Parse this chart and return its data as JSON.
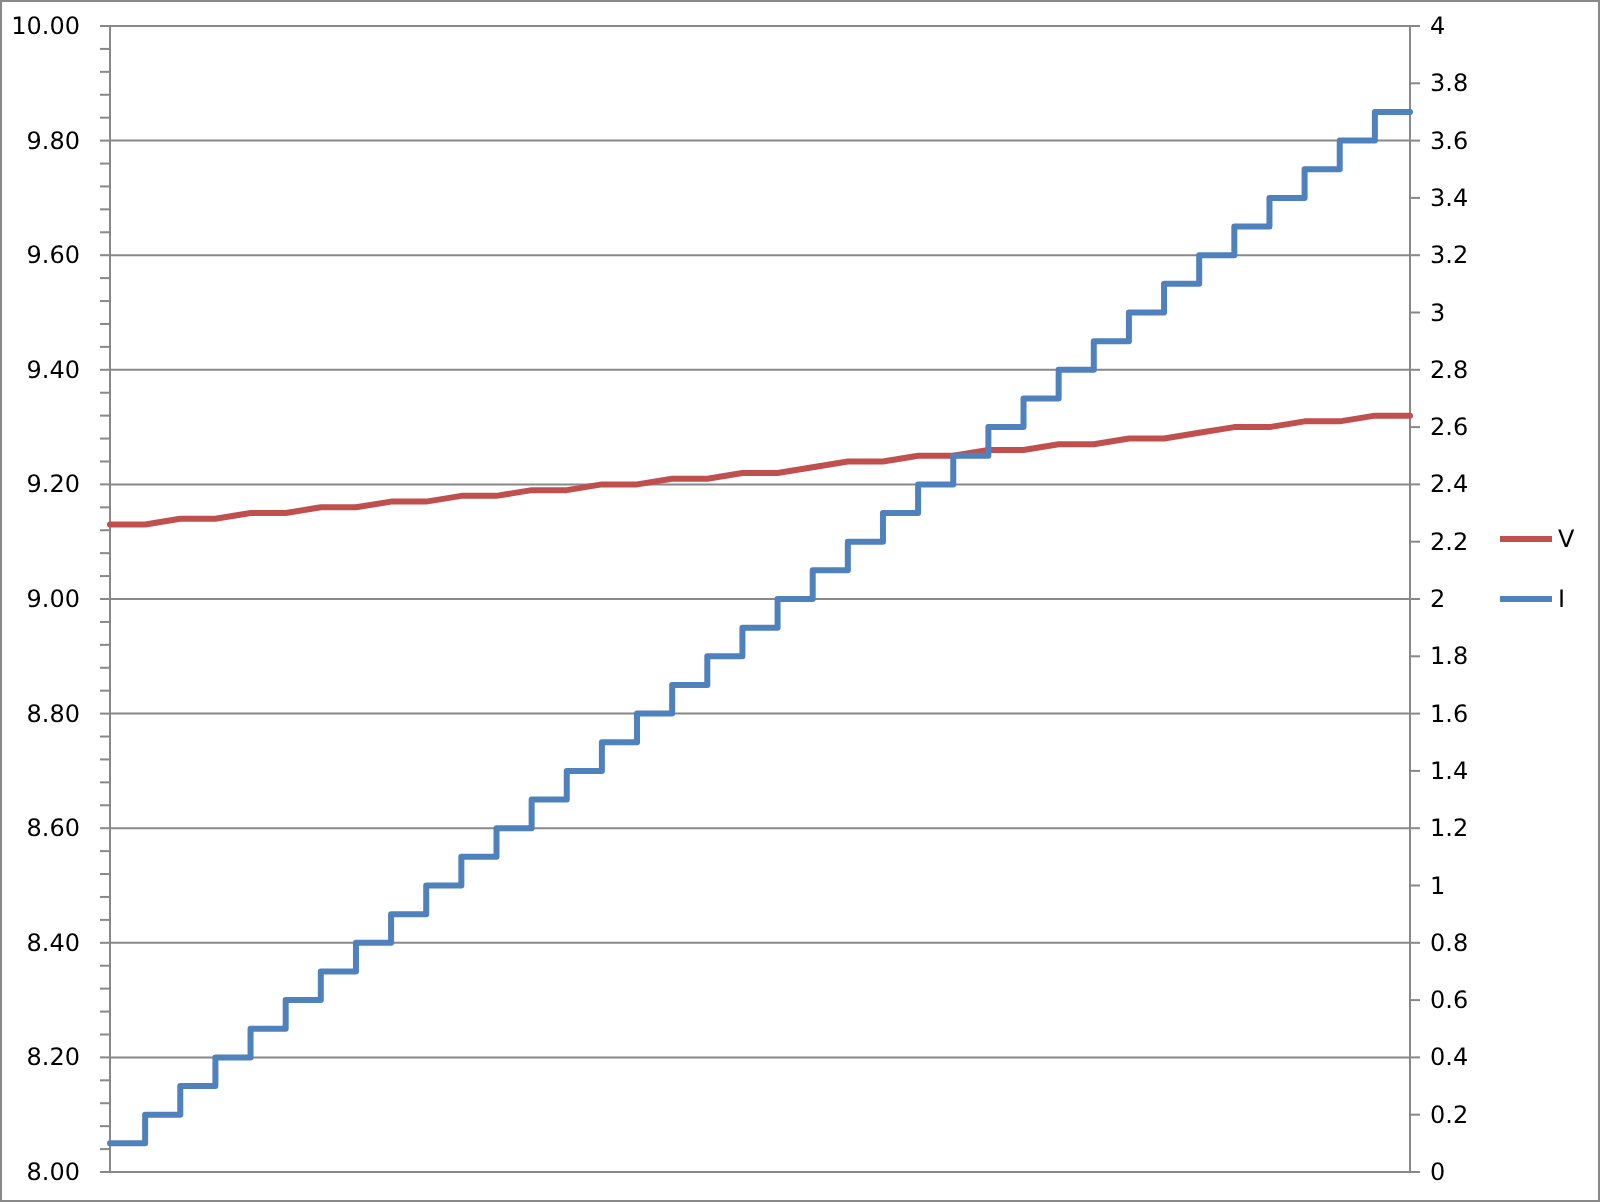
{
  "chart_data": {
    "type": "line",
    "categories": [
      null,
      null,
      null,
      null,
      null,
      null,
      null,
      null,
      null,
      null,
      null,
      null,
      null,
      null,
      null,
      null,
      null,
      null,
      null,
      null,
      null,
      null,
      null,
      null,
      null,
      null,
      null,
      null,
      null,
      null,
      null,
      null,
      null,
      null,
      null,
      null,
      null,
      null
    ],
    "series": [
      {
        "name": "V",
        "color": "#c0504d",
        "values": [
          9.13,
          9.13,
          9.14,
          9.14,
          9.15,
          9.15,
          9.16,
          9.16,
          9.17,
          9.17,
          9.18,
          9.18,
          9.19,
          9.19,
          9.2,
          9.2,
          9.21,
          9.21,
          9.22,
          9.22,
          9.23,
          9.24,
          9.24,
          9.25,
          9.25,
          9.26,
          9.26,
          9.27,
          9.27,
          9.28,
          9.28,
          9.29,
          9.3,
          9.3,
          9.31,
          9.31,
          9.32,
          9.32
        ]
      },
      {
        "name": "I",
        "color": "#4f81bd",
        "type": "step",
        "axis": "y2",
        "values": [
          0.1,
          0.2,
          0.3,
          0.4,
          0.5,
          0.6,
          0.7,
          0.8,
          0.9,
          1.0,
          1.1,
          1.2,
          1.3,
          1.4,
          1.5,
          1.6,
          1.7,
          1.8,
          1.9,
          2.0,
          2.1,
          2.2,
          2.3,
          2.4,
          2.5,
          2.6,
          2.7,
          2.8,
          2.9,
          3.0,
          3.1,
          3.2,
          3.3,
          3.4,
          3.5,
          3.6,
          3.7,
          3.7
        ]
      }
    ],
    "ylim": [
      8,
      10
    ],
    "yticks": [
      {
        "value": 8,
        "label": "8.00"
      },
      {
        "value": 8.04,
        "label": null
      },
      {
        "value": 8.08,
        "label": null
      },
      {
        "value": 8.12,
        "label": null
      },
      {
        "value": 8.16,
        "label": null
      },
      {
        "value": 8.2,
        "label": "8.20"
      },
      {
        "value": 8.24,
        "label": null
      },
      {
        "value": 8.28,
        "label": null
      },
      {
        "value": 8.32,
        "label": null
      },
      {
        "value": 8.36,
        "label": null
      },
      {
        "value": 8.4,
        "label": "8.40"
      },
      {
        "value": 8.44,
        "label": null
      },
      {
        "value": 8.48,
        "label": null
      },
      {
        "value": 8.52,
        "label": null
      },
      {
        "value": 8.56,
        "label": null
      },
      {
        "value": 8.6,
        "label": "8.60"
      },
      {
        "value": 8.64,
        "label": null
      },
      {
        "value": 8.68,
        "label": null
      },
      {
        "value": 8.72,
        "label": null
      },
      {
        "value": 8.76,
        "label": null
      },
      {
        "value": 8.8,
        "label": "8.80"
      },
      {
        "value": 8.84,
        "label": null
      },
      {
        "value": 8.88,
        "label": null
      },
      {
        "value": 8.92,
        "label": null
      },
      {
        "value": 8.96,
        "label": null
      },
      {
        "value": 9,
        "label": "9.00"
      },
      {
        "value": 9.04,
        "label": null
      },
      {
        "value": 9.08,
        "label": null
      },
      {
        "value": 9.12,
        "label": null
      },
      {
        "value": 9.16,
        "label": null
      },
      {
        "value": 9.2,
        "label": "9.20"
      },
      {
        "value": 9.24,
        "label": null
      },
      {
        "value": 9.28,
        "label": null
      },
      {
        "value": 9.32,
        "label": null
      },
      {
        "value": 9.36,
        "label": null
      },
      {
        "value": 9.4,
        "label": "9.40"
      },
      {
        "value": 9.44,
        "label": null
      },
      {
        "value": 9.48,
        "label": null
      },
      {
        "value": 9.52,
        "label": null
      },
      {
        "value": 9.56,
        "label": null
      },
      {
        "value": 9.6,
        "label": "9.60"
      },
      {
        "value": 9.64,
        "label": null
      },
      {
        "value": 9.68,
        "label": null
      },
      {
        "value": 9.72,
        "label": null
      },
      {
        "value": 9.76,
        "label": null
      },
      {
        "value": 9.8,
        "label": "9.80"
      },
      {
        "value": 9.84,
        "label": null
      },
      {
        "value": 9.88,
        "label": null
      },
      {
        "value": 9.92,
        "label": null
      },
      {
        "value": 9.96,
        "label": null
      },
      {
        "value": 10,
        "label": "10.00"
      }
    ],
    "y2lim": [
      0,
      4
    ],
    "y2ticks": [
      0,
      0.2,
      0.4,
      0.6,
      0.8,
      1,
      1.2,
      1.4,
      1.6,
      1.8,
      2,
      2.2,
      2.4,
      2.6,
      2.8,
      3,
      3.2,
      3.4,
      3.6,
      3.8,
      4
    ],
    "grid": "y",
    "legend": "right",
    "tick_labels": "y"
  }
}
